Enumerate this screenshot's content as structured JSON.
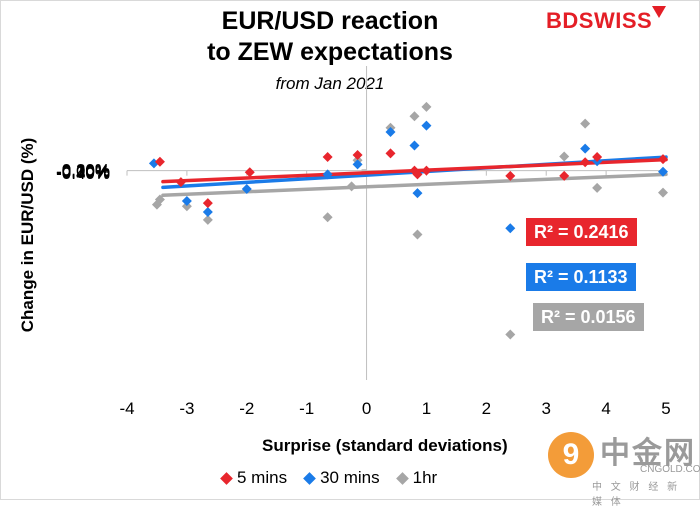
{
  "brand": {
    "logo_text": "BDSWISS",
    "accent": "#e41e26"
  },
  "chart_data": {
    "type": "scatter",
    "title": "EUR/USD reaction\nto ZEW expectations",
    "subtitle": "from Jan 2021",
    "xlabel": "Surprise (standard deviations)",
    "ylabel": "Change in EUR/USD (%)",
    "xlim": [
      -4,
      5
    ],
    "ylim": [
      -0.4,
      0.2
    ],
    "x_ticks": [
      "-4",
      "-3",
      "-2",
      "-1",
      "0",
      "1",
      "2",
      "3",
      "4",
      "5"
    ],
    "y_ticks": [
      "0.20%",
      "0.10%",
      "0.00%",
      "-0.10%",
      "-0.20%",
      "-0.30%",
      "-0.40%"
    ],
    "grid": false,
    "legend_position": "bottom",
    "series": [
      {
        "name": "5 mins",
        "color": "#e8262d",
        "marker": "diamond",
        "r2_label": "R² = 0.2416",
        "trend": [
          [
            -3.4,
            -0.021
          ],
          [
            5.0,
            0.021
          ]
        ],
        "points": [
          [
            -3.45,
            0.017
          ],
          [
            -3.1,
            -0.022
          ],
          [
            -2.65,
            -0.062
          ],
          [
            -1.95,
            -0.003
          ],
          [
            -0.65,
            0.026
          ],
          [
            -0.15,
            0.03
          ],
          [
            0.4,
            0.033
          ],
          [
            0.8,
            0.0
          ],
          [
            0.85,
            -0.007
          ],
          [
            1.0,
            0.0
          ],
          [
            2.4,
            -0.01
          ],
          [
            3.3,
            -0.01
          ],
          [
            3.65,
            0.016
          ],
          [
            3.85,
            0.026
          ],
          [
            4.95,
            0.022
          ]
        ]
      },
      {
        "name": "30 mins",
        "color": "#1a7be8",
        "marker": "diamond",
        "r2_label": "R² = 0.1133",
        "trend": [
          [
            -3.4,
            -0.032
          ],
          [
            5.0,
            0.026
          ]
        ],
        "points": [
          [
            -3.55,
            0.014
          ],
          [
            -3.0,
            -0.058
          ],
          [
            -2.65,
            -0.079
          ],
          [
            -2.0,
            -0.035
          ],
          [
            -0.65,
            -0.007
          ],
          [
            -0.15,
            0.012
          ],
          [
            0.4,
            0.074
          ],
          [
            0.8,
            0.048
          ],
          [
            0.85,
            -0.043
          ],
          [
            1.0,
            0.086
          ],
          [
            2.4,
            -0.11
          ],
          [
            3.65,
            0.042
          ],
          [
            3.85,
            0.018
          ],
          [
            4.95,
            -0.002
          ]
        ]
      },
      {
        "name": "1hr",
        "color": "#a6a6a6",
        "marker": "diamond",
        "r2_label": "R² = 0.0156",
        "trend": [
          [
            -3.4,
            -0.047
          ],
          [
            5.0,
            -0.007
          ]
        ],
        "points": [
          [
            -3.5,
            -0.065
          ],
          [
            -3.45,
            -0.055
          ],
          [
            -3.0,
            -0.068
          ],
          [
            -2.65,
            -0.094
          ],
          [
            -0.65,
            -0.089
          ],
          [
            -0.25,
            -0.03
          ],
          [
            -0.15,
            0.02
          ],
          [
            0.4,
            0.082
          ],
          [
            0.8,
            0.104
          ],
          [
            0.85,
            -0.122
          ],
          [
            1.0,
            0.122
          ],
          [
            2.4,
            -0.313
          ],
          [
            3.3,
            0.027
          ],
          [
            3.65,
            0.09
          ],
          [
            3.85,
            -0.033
          ],
          [
            4.95,
            -0.042
          ]
        ]
      }
    ]
  },
  "watermark": {
    "circle_text": "9",
    "cn_text": "中金网",
    "url_text": "CNGOLD.COM",
    "sub_text": "中 文 财 经 新 媒 体"
  }
}
